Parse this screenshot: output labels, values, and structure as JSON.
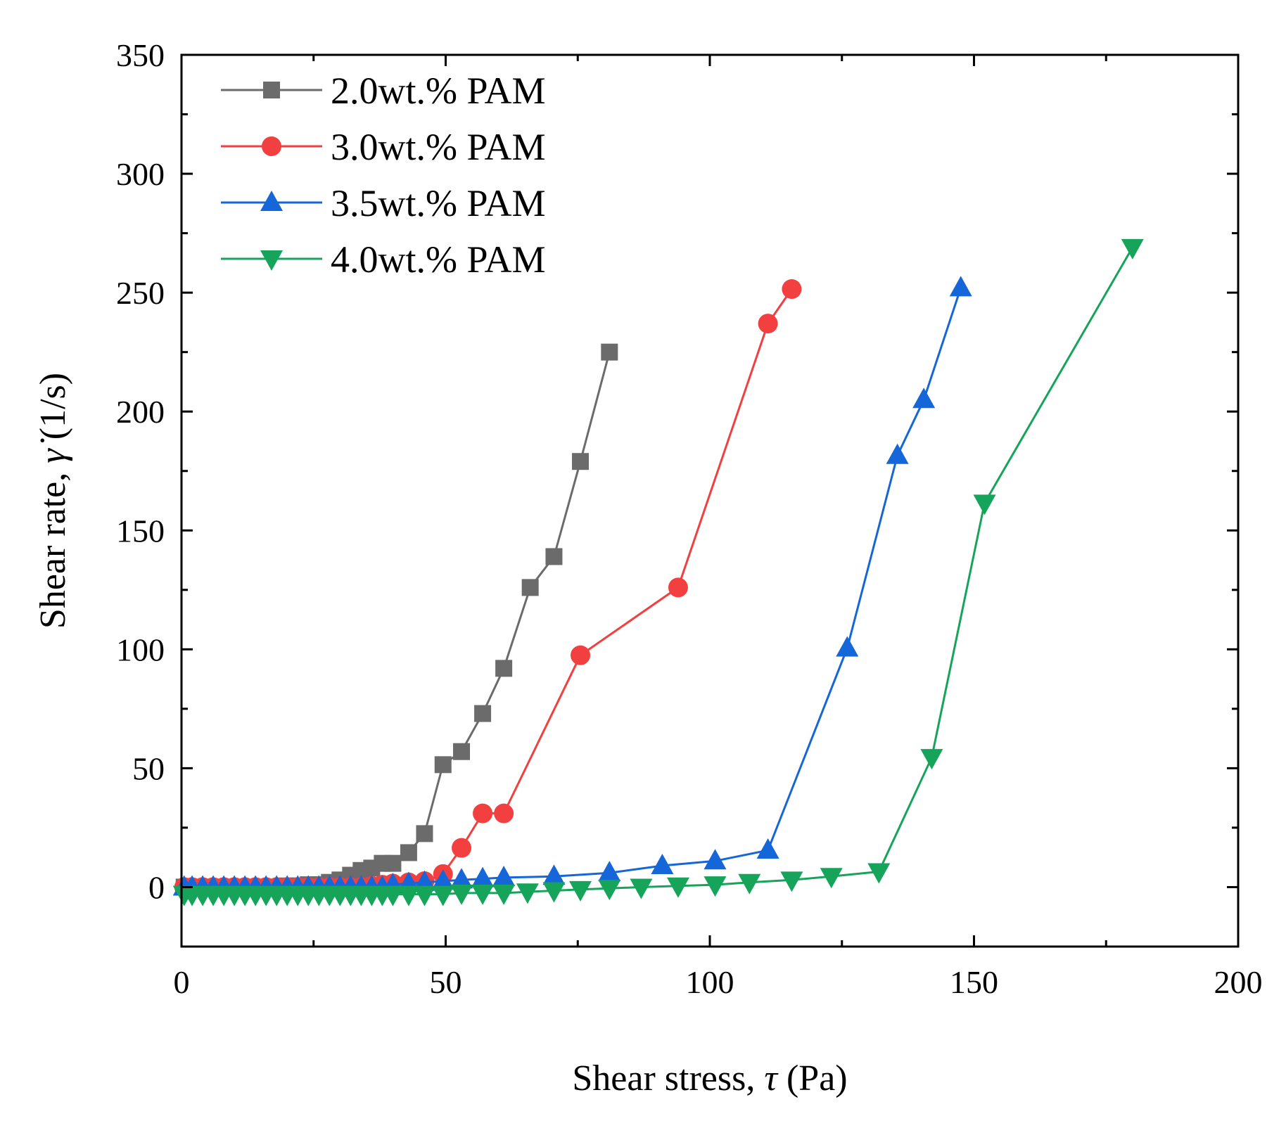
{
  "chart_data": {
    "type": "line",
    "title": "",
    "xlabel_main": "Shear stress, ",
    "xlabel_symbol": "τ",
    "xlabel_unit": " (Pa)",
    "ylabel_main": "Shear rate, ",
    "ylabel_symbol": "γ̇",
    "ylabel_unit": " (1/s)",
    "xlim": [
      0,
      200
    ],
    "ylim": [
      -25,
      350
    ],
    "xticks": [
      0,
      50,
      100,
      150,
      200
    ],
    "yticks": [
      0,
      50,
      100,
      150,
      200,
      250,
      300,
      350
    ],
    "legend_position": "top-left",
    "series": [
      {
        "name": "2.0wt.% PAM",
        "color": "#6b6b6b",
        "marker": "square",
        "x": [
          0.5,
          2,
          4,
          6,
          8,
          10,
          12,
          14,
          16,
          18,
          20,
          22,
          24,
          26,
          28,
          30,
          32,
          34,
          36,
          38,
          40,
          43,
          46,
          49.5,
          53,
          57,
          61,
          66,
          70.5,
          75.5,
          81
        ],
        "y": [
          0,
          0,
          0,
          0,
          0,
          0,
          0,
          0,
          0,
          0,
          0.5,
          0.5,
          1,
          1,
          2,
          3,
          5,
          7,
          8,
          10,
          10,
          14.5,
          22.5,
          51.5,
          57,
          73,
          92,
          126,
          139,
          179,
          225
        ]
      },
      {
        "name": "3.0wt.% PAM",
        "color": "#f24040",
        "marker": "circle",
        "x": [
          0.5,
          2,
          4,
          6,
          8,
          10,
          12,
          14,
          16,
          18,
          20,
          22,
          24,
          26,
          28,
          30,
          32,
          34,
          36,
          38,
          40,
          43,
          46,
          49.5,
          53,
          57,
          61,
          75.5,
          94,
          111,
          115.5
        ],
        "y": [
          0,
          0,
          0,
          0,
          0,
          0,
          0,
          0,
          0,
          0,
          0,
          0,
          0,
          0,
          0,
          0,
          0,
          0,
          0.5,
          1,
          1.5,
          2,
          2.5,
          5.5,
          16.5,
          31,
          31,
          97.5,
          126,
          237,
          251.5
        ]
      },
      {
        "name": "3.5wt.% PAM",
        "color": "#1466d9",
        "marker": "triangle-up",
        "x": [
          0.5,
          2,
          4,
          6,
          8,
          10,
          12,
          14,
          16,
          18,
          20,
          22,
          24,
          26,
          28,
          30,
          32,
          34,
          36,
          38,
          40,
          43,
          46,
          49.5,
          53,
          57,
          61,
          70.5,
          81,
          91,
          101,
          111,
          126,
          135.5,
          140.5,
          147.5
        ],
        "y": [
          0,
          0,
          0,
          0,
          0,
          0,
          0,
          0,
          0,
          0,
          0,
          0,
          0,
          0,
          0,
          0,
          0,
          0,
          0,
          0,
          1,
          1.5,
          2,
          2.5,
          3,
          3.5,
          4,
          4.5,
          6,
          9,
          11,
          15.5,
          100.5,
          181.5,
          205,
          252
        ]
      },
      {
        "name": "4.0wt.% PAM",
        "color": "#16a35a",
        "marker": "triangle-down",
        "x": [
          0.5,
          2,
          4,
          6,
          8,
          10,
          12,
          14,
          16,
          18,
          20,
          22,
          24,
          26,
          28,
          30,
          32,
          34,
          36,
          38,
          40,
          43,
          46,
          49.5,
          53,
          57,
          61,
          65.5,
          70.5,
          75.5,
          81,
          87,
          94,
          101,
          107.5,
          115.5,
          123,
          132,
          142,
          152,
          180
        ],
        "y": [
          -3,
          -3,
          -3,
          -3,
          -3,
          -3,
          -3,
          -3,
          -3,
          -3,
          -3,
          -3,
          -3,
          -3,
          -3,
          -3,
          -3,
          -3,
          -3,
          -3,
          -3,
          -3,
          -3,
          -3,
          -2.5,
          -2.5,
          -2.5,
          -2,
          -1.5,
          -1,
          -0.5,
          0,
          0.5,
          1,
          2,
          3,
          4.5,
          6.5,
          54.5,
          161.5,
          269
        ]
      }
    ]
  }
}
